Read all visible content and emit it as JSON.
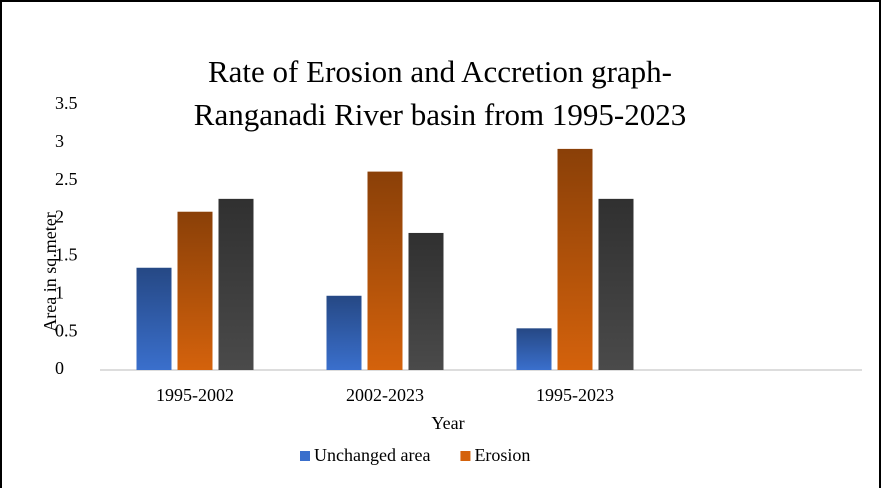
{
  "chart_data": {
    "type": "bar",
    "title": [
      "Rate of Erosion and Accretion graph-",
      "Ranganadi River basin from 1995-2023"
    ],
    "x_label": "Year",
    "y_label": "Area in sq.meter",
    "categories": [
      "1995-2002",
      "2002-2023",
      "1995-2023",
      null
    ],
    "series": [
      {
        "name": "Unchanged area",
        "color": "#3a6fcc",
        "values": [
          1.35,
          0.98,
          0.55,
          null
        ]
      },
      {
        "name": "Erosion",
        "color": "#d4620c",
        "values": [
          2.09,
          2.62,
          2.92,
          null
        ]
      },
      {
        "color": "#4a4a4a",
        "values": [
          2.26,
          1.81,
          2.26,
          null
        ]
      }
    ],
    "ylim": [
      0,
      3.5
    ],
    "yticks": [
      0,
      0.5,
      1,
      1.5,
      2,
      2.5,
      3,
      3.5
    ],
    "grid": false,
    "legend": "bottom"
  }
}
